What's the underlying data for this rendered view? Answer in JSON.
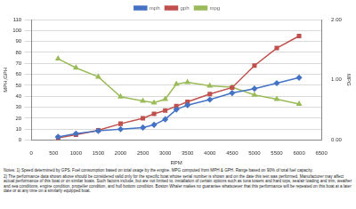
{
  "chart_data": {
    "type": "line",
    "x_label": "RPM",
    "y_label": "MPH,GPH",
    "y2_label": "MPG",
    "x": [
      600,
      1000,
      1500,
      2000,
      2500,
      2750,
      3000,
      3250,
      3500,
      4000,
      4500,
      5000,
      5500,
      6000
    ],
    "series": [
      {
        "name": "mph",
        "color": "#4472c4",
        "marker": "diamond",
        "values": [
          3,
          6,
          8.5,
          10,
          11.5,
          14,
          19,
          28,
          32,
          37,
          43,
          47,
          52,
          57
        ]
      },
      {
        "name": "gph",
        "color": "#c0504d",
        "marker": "square",
        "values": [
          2,
          5,
          9,
          15,
          20,
          24,
          27,
          31,
          35,
          42,
          48,
          68,
          84,
          95
        ]
      },
      {
        "name": "mpg",
        "color": "#9bbb59",
        "marker": "triangle",
        "axis": "y2",
        "values": [
          1.35,
          1.2,
          1.05,
          0.72,
          0.65,
          0.62,
          0.68,
          0.93,
          0.96,
          0.9,
          0.88,
          0.75,
          0.68,
          0.6
        ]
      }
    ],
    "xlim": [
      0,
      6500
    ],
    "xticks": [
      0,
      500,
      1000,
      1500,
      2000,
      2500,
      3000,
      3500,
      4000,
      4500,
      5000,
      5500,
      6000,
      6500
    ],
    "ylim": [
      0,
      110
    ],
    "yticks": [
      0,
      10,
      20,
      30,
      40,
      50,
      60,
      70,
      80,
      90,
      100,
      110
    ],
    "y2lim": [
      0,
      2
    ],
    "y2ticks": [
      {
        "value": 0,
        "label": "0.00"
      },
      {
        "value": 1,
        "label": "1.00"
      },
      {
        "value": 2,
        "label": "2.00"
      }
    ],
    "grid": true,
    "legend": "top",
    "notes": [
      "Notes: 1) Speed determined by GPS. Fuel consumption based on total usage by the engine. MPG computed from MPH & GPH. Range based on 90% of total fuel capacity.",
      "2) The performance data shown above should be considered valid only for the specific boat whose serial number is shown and on the date this test was performed. Manufacturer may affect actual performance of this boat or on similar boats. Such factors include, but are not limited to, installation of certain options such as tuna towers and hard tops, sea/air loading and trim, weather and sea conditions, engine condition, propeller condition, and hull bottom condition. Boston Whaler makes no guarantee whatsoever that this performance will be repeated on this boat at a later date or at any time on a similarly equipped boat."
    ]
  }
}
